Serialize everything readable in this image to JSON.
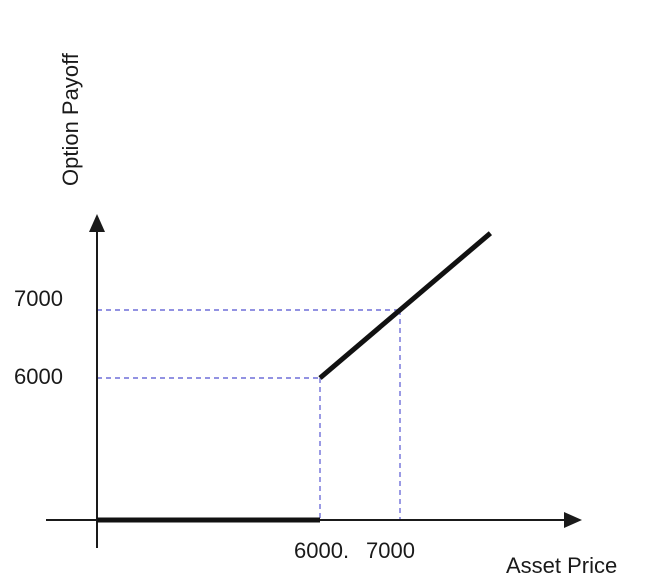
{
  "chart_data": {
    "type": "line",
    "title": "",
    "xlabel": "Asset Price",
    "ylabel": "Option Payoff",
    "x_tick_labels": [
      "6000.",
      "7000"
    ],
    "y_tick_labels": [
      "6000",
      "7000"
    ],
    "guides": [
      {
        "x": 6000,
        "y": 6000
      },
      {
        "x": 7000,
        "y": 7000
      }
    ],
    "series": [
      {
        "segments": [
          [
            [
              0,
              0
            ],
            [
              6000,
              0
            ]
          ],
          [
            [
              6000,
              6000
            ],
            [
              7000,
              7000
            ],
            [
              8130,
              8130
            ]
          ]
        ]
      }
    ],
    "grid": false,
    "colors": {
      "line": "#111111",
      "guide": "#6f6fd8",
      "axis": "#1a1a1a"
    }
  }
}
